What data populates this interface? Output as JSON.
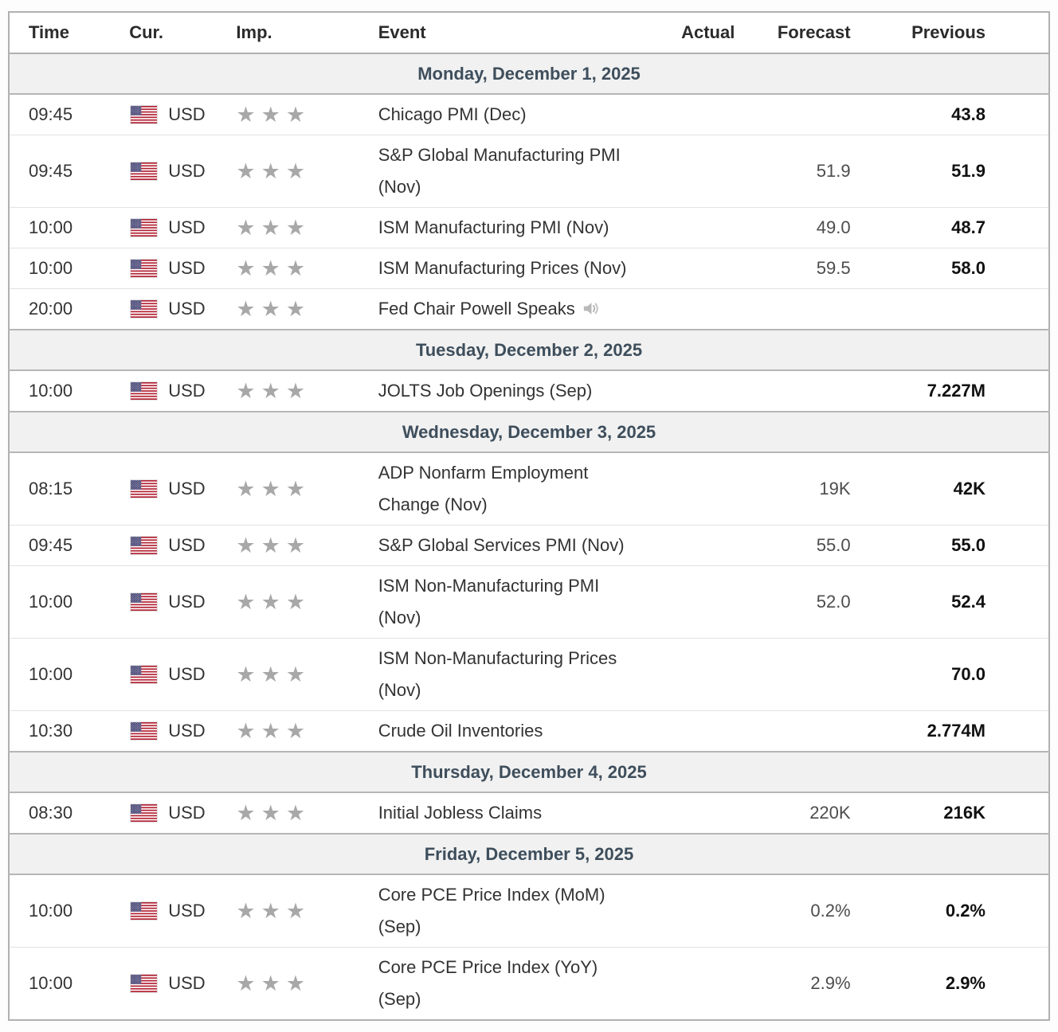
{
  "calendar": {
    "columns": [
      "Time",
      "Cur.",
      "Imp.",
      "Event",
      "Actual",
      "Forecast",
      "Previous"
    ],
    "icons": {
      "star": "★",
      "flag": "us-flag",
      "speech": "speaker"
    },
    "colors": {
      "day_header_text": "#3e4e5c",
      "day_header_bg": "#f1f1f1",
      "star_gray": "#a8a8a8",
      "forecast_text": "#4c4c4c",
      "previous_text": "#111111",
      "outer_border": "#b0b0b0",
      "row_border": "#e3e3e3"
    },
    "days": [
      {
        "label": "Monday, December 1, 2025",
        "events": [
          {
            "time": "09:45",
            "currency": "USD",
            "importance": 3,
            "event": "Chicago PMI (Dec)",
            "actual": "",
            "forecast": "",
            "previous": "43.8"
          },
          {
            "time": "09:45",
            "currency": "USD",
            "importance": 3,
            "event": "S&P Global Manufacturing PMI (Nov)",
            "actual": "",
            "forecast": "51.9",
            "previous": "51.9"
          },
          {
            "time": "10:00",
            "currency": "USD",
            "importance": 3,
            "event": "ISM Manufacturing PMI (Nov)",
            "actual": "",
            "forecast": "49.0",
            "previous": "48.7"
          },
          {
            "time": "10:00",
            "currency": "USD",
            "importance": 3,
            "event": "ISM Manufacturing Prices (Nov)",
            "actual": "",
            "forecast": "59.5",
            "previous": "58.0"
          },
          {
            "time": "20:00",
            "currency": "USD",
            "importance": 3,
            "event": "Fed Chair Powell Speaks",
            "speech": true,
            "actual": "",
            "forecast": "",
            "previous": ""
          }
        ]
      },
      {
        "label": "Tuesday, December 2, 2025",
        "events": [
          {
            "time": "10:00",
            "currency": "USD",
            "importance": 3,
            "event": "JOLTS Job Openings (Sep)",
            "actual": "",
            "forecast": "",
            "previous": "7.227M"
          }
        ]
      },
      {
        "label": "Wednesday, December 3, 2025",
        "events": [
          {
            "time": "08:15",
            "currency": "USD",
            "importance": 3,
            "event": "ADP Nonfarm Employment Change (Nov)",
            "actual": "",
            "forecast": "19K",
            "previous": "42K"
          },
          {
            "time": "09:45",
            "currency": "USD",
            "importance": 3,
            "event": "S&P Global Services PMI (Nov)",
            "actual": "",
            "forecast": "55.0",
            "previous": "55.0"
          },
          {
            "time": "10:00",
            "currency": "USD",
            "importance": 3,
            "event": "ISM Non-Manufacturing PMI (Nov)",
            "actual": "",
            "forecast": "52.0",
            "previous": "52.4"
          },
          {
            "time": "10:00",
            "currency": "USD",
            "importance": 3,
            "event": "ISM Non-Manufacturing Prices (Nov)",
            "actual": "",
            "forecast": "",
            "previous": "70.0"
          },
          {
            "time": "10:30",
            "currency": "USD",
            "importance": 3,
            "event": "Crude Oil Inventories",
            "actual": "",
            "forecast": "",
            "previous": "2.774M"
          }
        ]
      },
      {
        "label": "Thursday, December 4, 2025",
        "events": [
          {
            "time": "08:30",
            "currency": "USD",
            "importance": 3,
            "event": "Initial Jobless Claims",
            "actual": "",
            "forecast": "220K",
            "previous": "216K"
          }
        ]
      },
      {
        "label": "Friday, December 5, 2025",
        "events": [
          {
            "time": "10:00",
            "currency": "USD",
            "importance": 3,
            "event": "Core PCE Price Index (MoM) (Sep)",
            "actual": "",
            "forecast": "0.2%",
            "previous": "0.2%"
          },
          {
            "time": "10:00",
            "currency": "USD",
            "importance": 3,
            "event": "Core PCE Price Index (YoY) (Sep)",
            "actual": "",
            "forecast": "2.9%",
            "previous": "2.9%"
          }
        ]
      }
    ]
  }
}
